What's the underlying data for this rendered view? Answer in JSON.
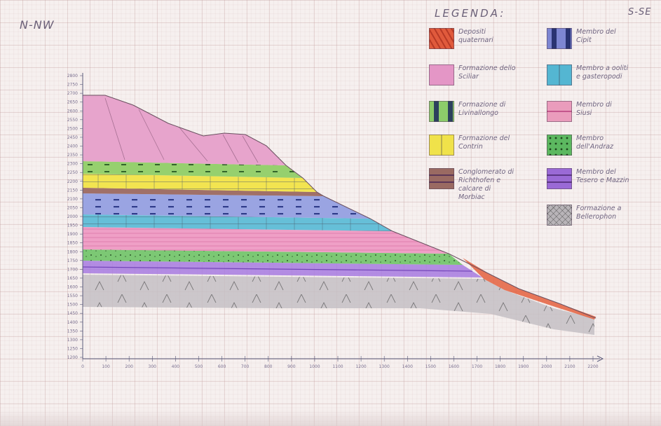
{
  "orientation": {
    "left": "N-NW",
    "right": "S-SE"
  },
  "legend": {
    "title": "LEGENDA:",
    "items": [
      {
        "id": "detrito",
        "label": "Depositi\nquaternari",
        "color": "#e05a3c",
        "pattern": "wave",
        "name": "legend-item-depositi-quaternari"
      },
      {
        "id": "cipit",
        "label": "Membro del\nCipit",
        "color": "#7d86d2",
        "pattern": "dash",
        "name": "legend-item-membro-cipit"
      },
      {
        "id": "sciliar",
        "label": "Formazione dello\nSciliar",
        "color": "#e496c6",
        "pattern": "plain",
        "name": "legend-item-formazione-sciliar"
      },
      {
        "id": "ooliti",
        "label": "Membro a ooliti\ne gasteropodi",
        "color": "#54b6d2",
        "pattern": "brick",
        "name": "legend-item-membro-ooliti"
      },
      {
        "id": "livinallongo",
        "label": "Formazione di\nLivinallongo",
        "color": "#8ccc6a",
        "pattern": "dash",
        "name": "legend-item-formazione-livinallongo"
      },
      {
        "id": "siusi",
        "label": "Membro di\nSiusi",
        "color": "#ea9cbc",
        "pattern": "line",
        "name": "legend-item-membro-siusi"
      },
      {
        "id": "contrin",
        "label": "Formazione del\nContrin",
        "color": "#f0e24a",
        "pattern": "brick",
        "name": "legend-item-formazione-contrin"
      },
      {
        "id": "andraz",
        "label": "Membro\ndell'Andraz",
        "color": "#5cb860",
        "pattern": "dots",
        "name": "legend-item-membro-andraz"
      },
      {
        "id": "richthofen",
        "label": "Conglomerato di\nRichthofen e\ncalcare di\nMorbiac",
        "color": "#9a6a62",
        "pattern": "stripes",
        "name": "legend-item-conglomerato-richthofen"
      },
      {
        "id": "tesero",
        "label": "Membro del\nTesero e Mazzin",
        "color": "#9a6ad6",
        "pattern": "stripes",
        "name": "legend-item-membro-tesero"
      },
      {
        "id": "bellerophon",
        "label": "Formazione a\nBellerophon",
        "color": "#b8b4b8",
        "pattern": "chevron",
        "name": "legend-item-formazione-bellerophon"
      }
    ]
  },
  "section": {
    "y_ticks": [
      "2800",
      "2750",
      "2700",
      "2650",
      "2600",
      "2550",
      "2500",
      "2450",
      "2400",
      "2350",
      "2300",
      "2250",
      "2200",
      "2150",
      "2100",
      "2050",
      "2000",
      "1950",
      "1900",
      "1850",
      "1800",
      "1750",
      "1700",
      "1650",
      "1600",
      "1550",
      "1500",
      "1450",
      "1400",
      "1350",
      "1300",
      "1250",
      "1200"
    ],
    "x_ticks": [
      "0",
      "100",
      "200",
      "300",
      "400",
      "500",
      "600",
      "700",
      "800",
      "900",
      "1000",
      "1100",
      "1200",
      "1300",
      "1400",
      "1500",
      "1600",
      "1700",
      "1800",
      "1900",
      "2000",
      "2100",
      "2200"
    ]
  }
}
